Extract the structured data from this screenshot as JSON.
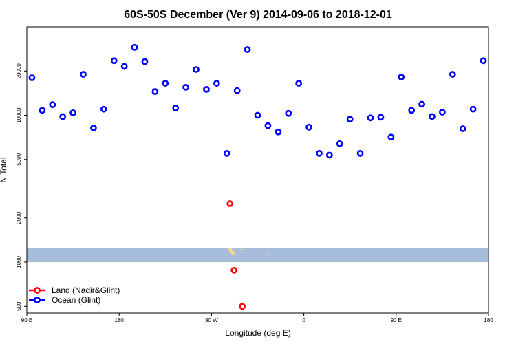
{
  "chart_data": {
    "type": "scatter",
    "title": "60S-50S December (Ver 9)   2014-09-06 to 2018-12-01",
    "xlabel": "Longitude (deg E)",
    "ylabel": "N Total",
    "y_scale": "log",
    "ylim": [
      450,
      40000
    ],
    "xlim": [
      0,
      450
    ],
    "x_ticks": [
      {
        "value": 0,
        "label": "90 E"
      },
      {
        "value": 90,
        "label": "180"
      },
      {
        "value": 180,
        "label": "90 W"
      },
      {
        "value": 270,
        "label": "0"
      },
      {
        "value": 360,
        "label": "90 E"
      },
      {
        "value": 450,
        "label": "180"
      }
    ],
    "y_ticks": [
      {
        "value": 500,
        "label": "500"
      },
      {
        "value": 1000,
        "label": "1000"
      },
      {
        "value": 2000,
        "label": "2000"
      },
      {
        "value": 5000,
        "label": "5000"
      },
      {
        "value": 10000,
        "label": "10000"
      },
      {
        "value": 20000,
        "label": "20000"
      }
    ],
    "colors": {
      "land": "#ff0000",
      "ocean": "#0000ff",
      "map_band": "#a6bddb",
      "map_land": "#f5d68c"
    },
    "legend": {
      "position": "bottom-left"
    },
    "series": [
      {
        "name": "Land (Nadir&Glint)",
        "key": "land",
        "x": [
          198,
          202,
          210
        ],
        "y": [
          2500,
          880,
          500
        ]
      },
      {
        "name": "Ocean (Glint)",
        "key": "ocean",
        "x": [
          5,
          15,
          25,
          35,
          45,
          55,
          65,
          75,
          85,
          95,
          105,
          115,
          125,
          135,
          145,
          155,
          165,
          175,
          185,
          195,
          205,
          215,
          225,
          235,
          245,
          255,
          265,
          275,
          285,
          295,
          305,
          315,
          325,
          335,
          345,
          355,
          365,
          375,
          385,
          395,
          405,
          415,
          425,
          435,
          445
        ],
        "y": [
          18000,
          10800,
          11800,
          9800,
          10400,
          19000,
          8200,
          11000,
          23500,
          21500,
          29000,
          23200,
          14500,
          16500,
          11200,
          15500,
          20500,
          15000,
          16500,
          5500,
          14700,
          28000,
          10000,
          8500,
          7700,
          10300,
          16500,
          8300,
          5500,
          5350,
          6400,
          9400,
          5500,
          9600,
          9700,
          7100,
          18200,
          10800,
          11900,
          9800,
          10500,
          19000,
          8100,
          11000,
          23500
        ]
      }
    ]
  }
}
